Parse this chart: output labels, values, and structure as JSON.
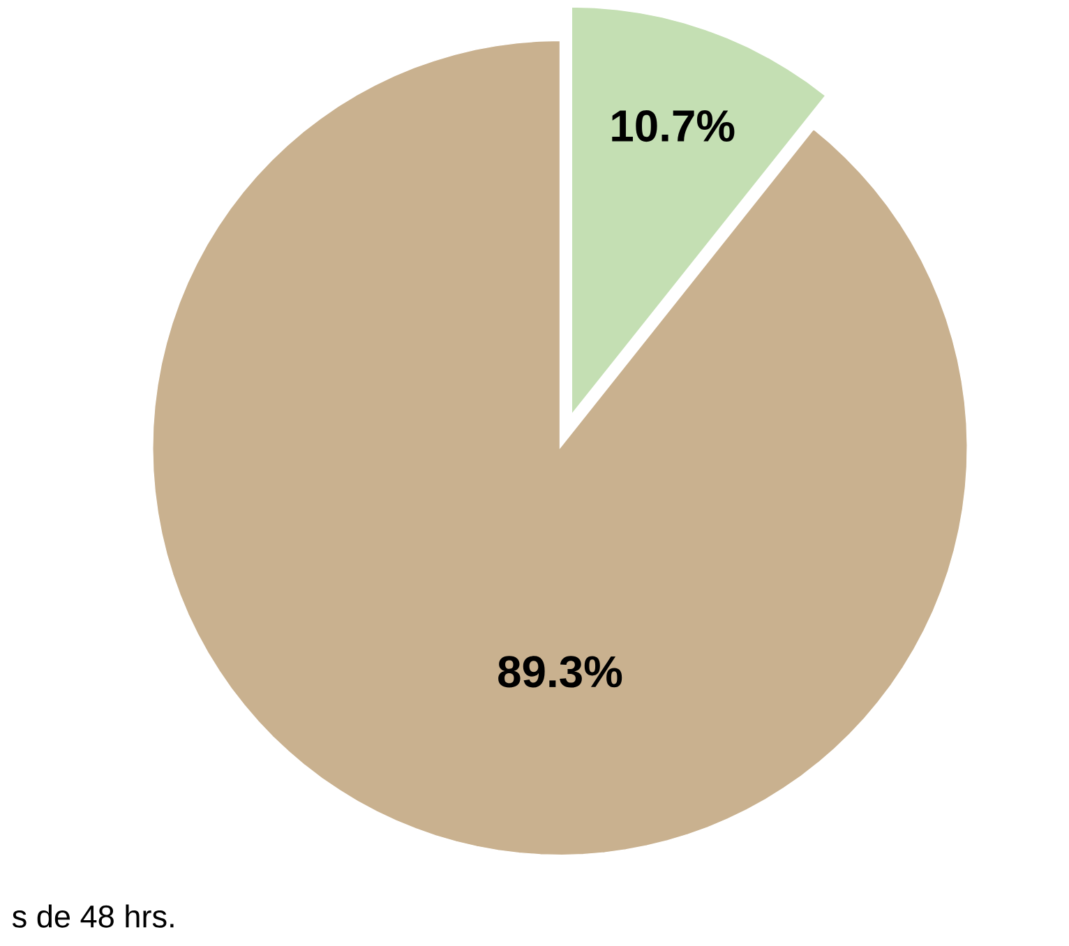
{
  "chart_data": {
    "type": "pie",
    "categories": [
      null,
      null
    ],
    "values": [
      10.7,
      89.3
    ],
    "colors": [
      "#c4dfb3",
      "#c9b18f"
    ],
    "value_labels": [
      "10.7%",
      "89.3%"
    ],
    "annotations": [
      "s de 48 hrs."
    ]
  }
}
